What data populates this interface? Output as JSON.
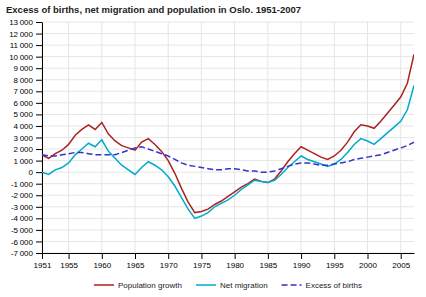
{
  "chart_data": {
    "type": "line",
    "title": "Excess of births, net migration and population in Oslo. 1951-2007",
    "x": [
      1951,
      1952,
      1953,
      1954,
      1955,
      1956,
      1957,
      1958,
      1959,
      1960,
      1961,
      1962,
      1963,
      1964,
      1965,
      1966,
      1967,
      1968,
      1969,
      1970,
      1971,
      1972,
      1973,
      1974,
      1975,
      1976,
      1977,
      1978,
      1979,
      1980,
      1981,
      1982,
      1983,
      1984,
      1985,
      1986,
      1987,
      1988,
      1989,
      1990,
      1991,
      1992,
      1993,
      1994,
      1995,
      1996,
      1997,
      1998,
      1999,
      2000,
      2001,
      2002,
      2003,
      2004,
      2005,
      2006,
      2007
    ],
    "series": [
      {
        "name": "Population growth",
        "color": "#AA2222",
        "line_style": "solid",
        "values": [
          1500,
          1200,
          1600,
          1900,
          2400,
          3200,
          3700,
          4100,
          3700,
          4300,
          3300,
          2700,
          2300,
          2100,
          1900,
          2600,
          2900,
          2400,
          1800,
          1000,
          -100,
          -1400,
          -2600,
          -3500,
          -3400,
          -3200,
          -2800,
          -2500,
          -2100,
          -1700,
          -1300,
          -1000,
          -600,
          -800,
          -900,
          -600,
          100,
          900,
          1600,
          2200,
          1900,
          1600,
          1300,
          1100,
          1400,
          1900,
          2600,
          3500,
          4100,
          4000,
          3800,
          4400,
          5100,
          5800,
          6500,
          7700,
          10200
        ]
      },
      {
        "name": "Net migration",
        "color": "#00AACC",
        "line_style": "solid",
        "values": [
          0,
          -200,
          200,
          400,
          800,
          1500,
          2000,
          2500,
          2200,
          2800,
          1800,
          1200,
          600,
          200,
          -200,
          400,
          900,
          600,
          200,
          -400,
          -1200,
          -2200,
          -3200,
          -4000,
          -3800,
          -3500,
          -3000,
          -2700,
          -2400,
          -2000,
          -1500,
          -1100,
          -700,
          -800,
          -900,
          -700,
          -200,
          400,
          900,
          1400,
          1100,
          900,
          700,
          500,
          700,
          1100,
          1700,
          2400,
          2900,
          2700,
          2400,
          2900,
          3400,
          3900,
          4400,
          5400,
          7500
        ]
      },
      {
        "name": "Excess of births",
        "color": "#3333CC",
        "line_style": "dashed",
        "values": [
          1500,
          1400,
          1400,
          1500,
          1600,
          1700,
          1700,
          1600,
          1500,
          1500,
          1500,
          1500,
          1700,
          1900,
          2100,
          2200,
          2000,
          1800,
          1600,
          1400,
          1100,
          800,
          600,
          500,
          400,
          300,
          200,
          200,
          300,
          300,
          200,
          100,
          100,
          0,
          0,
          100,
          300,
          500,
          700,
          800,
          800,
          700,
          600,
          600,
          700,
          800,
          900,
          1100,
          1200,
          1300,
          1400,
          1500,
          1700,
          1900,
          2100,
          2300,
          2600
        ]
      }
    ],
    "xlim": [
      1951,
      2007
    ],
    "ylim": [
      -7000,
      13000
    ],
    "xticks": [
      1951,
      1955,
      1960,
      1965,
      1970,
      1975,
      1980,
      1985,
      1990,
      1995,
      2000,
      2005
    ],
    "yticks": [
      {
        "value": -7000,
        "label": "-7 000"
      },
      {
        "value": -6000,
        "label": "-6 000"
      },
      {
        "value": -5000,
        "label": "-5 000"
      },
      {
        "value": -4000,
        "label": "-4 000"
      },
      {
        "value": -3000,
        "label": "-3 000"
      },
      {
        "value": -2000,
        "label": "-2 000"
      },
      {
        "value": -1000,
        "label": "-1 000"
      },
      0,
      {
        "value": 1000,
        "label": "1 000"
      },
      {
        "value": 2000,
        "label": "2 000"
      },
      {
        "value": 3000,
        "label": "3 000"
      },
      {
        "value": 4000,
        "label": "4 000"
      },
      {
        "value": 5000,
        "label": "5 000"
      },
      {
        "value": 6000,
        "label": "6 000"
      },
      {
        "value": 7000,
        "label": "7 000"
      },
      {
        "value": 8000,
        "label": "8 000"
      },
      {
        "value": 9000,
        "label": "9 000"
      },
      {
        "value": 10000,
        "label": "10 000"
      },
      {
        "value": 11000,
        "label": "11 000"
      },
      {
        "value": 12000,
        "label": "12 000"
      },
      {
        "value": 13000,
        "label": "13 000"
      }
    ],
    "grid": true,
    "legend": "bottom"
  }
}
